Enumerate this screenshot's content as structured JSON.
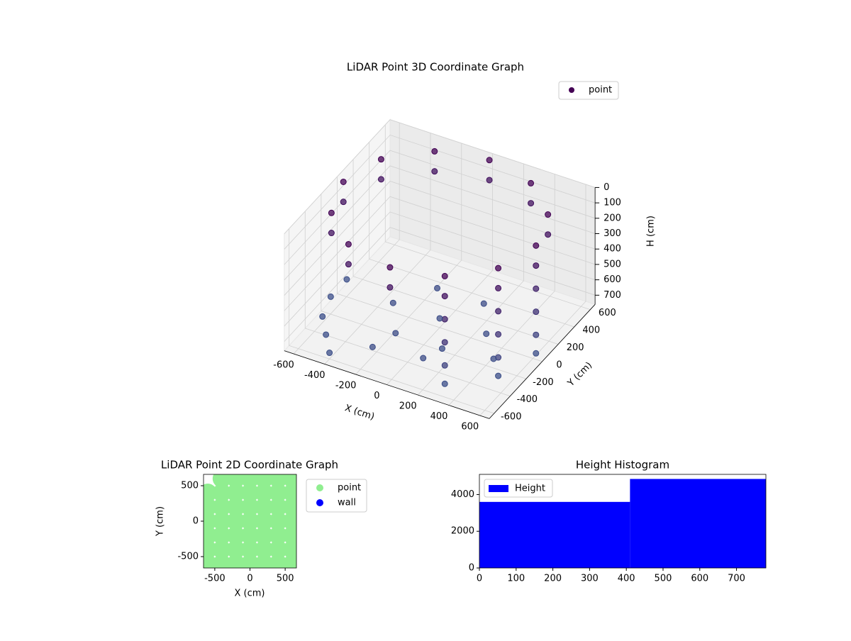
{
  "chart_data": [
    {
      "type": "scatter3d",
      "title": "LiDAR Point 3D Coordinate Graph",
      "x_label": "X (cm)",
      "y_label": "Y (cm)",
      "z_label": "H (cm)",
      "xlim": [
        -660,
        660
      ],
      "ylim": [
        -660,
        660
      ],
      "zlim": [
        0,
        760
      ],
      "z_inverted": true,
      "xticks": [
        -600,
        -400,
        -200,
        0,
        200,
        400,
        600
      ],
      "yticks": [
        -600,
        -400,
        -200,
        0,
        200,
        400,
        600
      ],
      "zticks": [
        0,
        100,
        200,
        300,
        400,
        500,
        600,
        700
      ],
      "colormap": [
        "#440154",
        "#3b528b"
      ],
      "legend": "upper right",
      "series": [
        {
          "name": "point",
          "x": [
            620,
            537,
            310,
            0,
            -310,
            -537,
            -620,
            -537,
            -310,
            0,
            310,
            537,
            620,
            537,
            310,
            0,
            -310,
            -537,
            -620,
            -537,
            -310,
            0,
            310,
            537,
            537,
            537,
            537,
            537,
            310,
            310,
            310,
            310,
            620,
            620,
            620,
            620,
            300,
            150,
            -150,
            -300,
            -150,
            150,
            0,
            450,
            -200,
            100,
            -650,
            -600,
            -500,
            -400,
            -650
          ],
          "y": [
            0,
            310,
            537,
            620,
            537,
            310,
            0,
            -310,
            -537,
            -620,
            -537,
            -310,
            0,
            310,
            537,
            620,
            537,
            310,
            0,
            -310,
            -537,
            -620,
            -537,
            -310,
            -310,
            -310,
            -310,
            -310,
            -537,
            -537,
            -537,
            -537,
            0,
            0,
            0,
            0,
            0,
            260,
            260,
            0,
            -260,
            -260,
            0,
            -200,
            -450,
            -400,
            -100,
            -300,
            -450,
            -600,
            100
          ],
          "z": [
            20,
            20,
            20,
            20,
            20,
            20,
            20,
            20,
            20,
            20,
            20,
            20,
            150,
            150,
            150,
            150,
            150,
            150,
            150,
            150,
            150,
            150,
            150,
            150,
            300,
            450,
            600,
            720,
            300,
            450,
            600,
            720,
            300,
            450,
            600,
            720,
            700,
            700,
            700,
            700,
            700,
            700,
            700,
            700,
            700,
            700,
            720,
            720,
            720,
            720,
            720
          ]
        }
      ]
    },
    {
      "type": "scatter",
      "title": "LiDAR Point 2D Coordinate Graph",
      "x_label": "X (cm)",
      "y_label": "Y (cm)",
      "xlim": [
        -660,
        660
      ],
      "ylim": [
        -660,
        660
      ],
      "xticks": [
        -500,
        0,
        500
      ],
      "yticks": [
        -500,
        0,
        500
      ],
      "legend": "outside right",
      "series": [
        {
          "name": "point",
          "color": "#90ee90",
          "x": [
            -600,
            -400,
            -200,
            0,
            200,
            400,
            600,
            -600,
            -400,
            -200,
            0,
            200,
            400,
            600,
            -600,
            -400,
            -200,
            0,
            200,
            400,
            600,
            -600,
            -400,
            -200,
            0,
            200,
            400,
            600,
            -600,
            -400,
            -200,
            0,
            200,
            400,
            600,
            -600,
            -400,
            -200,
            0,
            200,
            400,
            600,
            -400,
            -200,
            0,
            200,
            400,
            600
          ],
          "y": [
            -600,
            -600,
            -600,
            -600,
            -600,
            -600,
            -600,
            -400,
            -400,
            -400,
            -400,
            -400,
            -400,
            -400,
            -200,
            -200,
            -200,
            -200,
            -200,
            -200,
            -200,
            0,
            0,
            0,
            0,
            0,
            0,
            0,
            200,
            200,
            200,
            200,
            200,
            200,
            200,
            400,
            400,
            400,
            400,
            400,
            400,
            400,
            600,
            600,
            600,
            600,
            600,
            600
          ]
        },
        {
          "name": "wall",
          "color": "#0000ff",
          "x": [],
          "y": []
        }
      ]
    },
    {
      "type": "histogram",
      "title": "Height Histogram",
      "bins": [
        0,
        410,
        780
      ],
      "series": [
        {
          "name": "Height",
          "color": "#0000ff",
          "values": [
            3600,
            4850
          ]
        }
      ],
      "xlim": [
        0,
        780
      ],
      "ylim": [
        0,
        5100
      ],
      "xticks": [
        0,
        100,
        200,
        300,
        400,
        500,
        600,
        700
      ],
      "yticks": [
        0,
        2000,
        4000
      ],
      "legend": "upper left"
    }
  ]
}
